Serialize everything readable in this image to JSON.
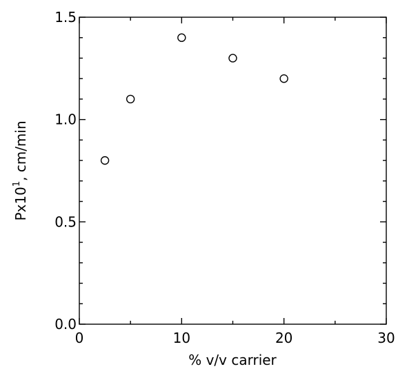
{
  "chart_data": {
    "type": "scatter",
    "title": "",
    "xlabel": "% v/v carrier",
    "ylabel_main": "Px10",
    "ylabel_sup": "1",
    "ylabel_rest": ", cm/min",
    "xlim": [
      0,
      30
    ],
    "ylim": [
      0.0,
      1.5
    ],
    "x_ticks": [
      0,
      10,
      20,
      30
    ],
    "y_ticks": [
      0.0,
      0.5,
      1.0,
      1.5
    ],
    "x_tick_labels": [
      "0",
      "10",
      "20",
      "30"
    ],
    "y_tick_labels": [
      "0.0",
      "0.5",
      "1.0",
      "1.5"
    ],
    "grid": false,
    "marker": "open-circle",
    "x": [
      2.5,
      5,
      10,
      15,
      20
    ],
    "y": [
      0.8,
      1.1,
      1.4,
      1.3,
      1.2
    ]
  }
}
